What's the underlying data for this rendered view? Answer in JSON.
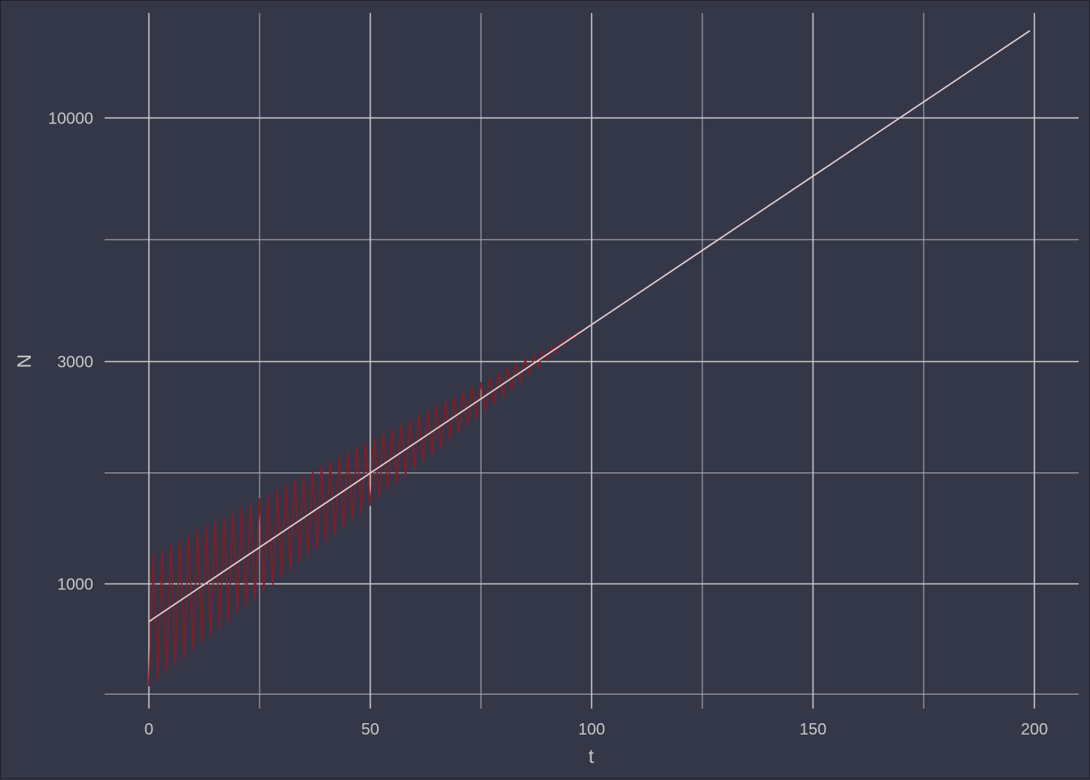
{
  "chart_data": {
    "type": "line",
    "title": "",
    "xlabel": "t",
    "ylabel": "N",
    "xlim": [
      -10,
      210
    ],
    "ylim": [
      540,
      16800
    ],
    "yscale": "log",
    "x_ticks": [
      0,
      50,
      100,
      150,
      200
    ],
    "x_tick_labels": [
      "0",
      "50",
      "100",
      "150",
      "200"
    ],
    "x_minor_ticks": [
      25,
      75,
      125,
      175
    ],
    "y_ticks": [
      1000,
      3000,
      10000
    ],
    "y_tick_labels": [
      "1000",
      "3000",
      "10000"
    ],
    "y_minor_ticks": [
      580,
      1730,
      5480
    ],
    "grid": true,
    "legend": "none",
    "series": [
      {
        "kind": "oscillating",
        "color": "#8b1a24",
        "x_start": 0,
        "x_end": 199,
        "period": 2,
        "upper_start": 1120,
        "lower_start": 590,
        "converge_x": 100,
        "end_value": 15400
      },
      {
        "kind": "trend",
        "color": "#e0cfd3",
        "x": [
          0,
          199
        ],
        "values": [
          830,
          15400
        ]
      }
    ]
  },
  "colors": {
    "background": "#343747",
    "grid_major": "#c9c9c9",
    "grid_minor": "#a9abb2",
    "text": "#c8c8c8"
  }
}
